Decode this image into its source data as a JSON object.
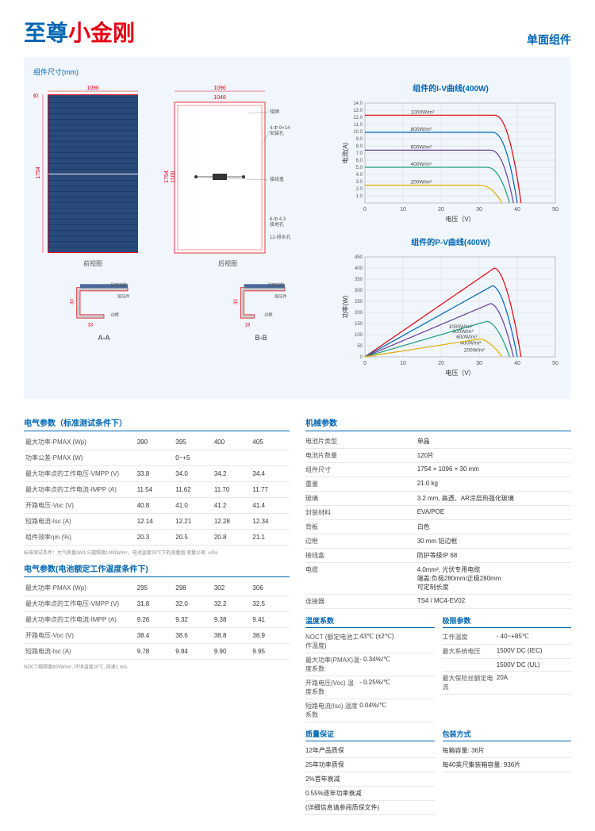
{
  "header": {
    "title_blue": "至尊",
    "title_red": "小金刚",
    "subtitle": "单面组件"
  },
  "dim_label": "组件尺寸(mm)",
  "dims": {
    "width": "1096",
    "inner_width": "1048",
    "height": "1754",
    "jbox_dist": "1100",
    "frame_h": "30",
    "prof_a_w": "33",
    "prof_b_w": "18",
    "front_caption": "前视图",
    "back_caption": "后视图",
    "prof_a": "A-A",
    "prof_b": "B-B",
    "label_mount": "4-Φ 9×14\n安装孔",
    "label_ground": "6-Φ 4.3\n接地孔",
    "label_drain": "12-排水孔",
    "label_nameplate": "铭牌",
    "label_jbox": "接线盒",
    "label_sealant": "硅密封胶",
    "label_laminate": "层压件",
    "label_frame": "边框"
  },
  "iv_chart": {
    "title": "组件的I-V曲线(400W)",
    "xlabel": "电压（V）",
    "ylabel": "电流(A)",
    "xlim": [
      0,
      50
    ],
    "xtick": [
      0,
      10,
      20,
      30,
      40,
      50
    ],
    "ylim": [
      0,
      14
    ],
    "ytick": [
      1,
      2,
      3,
      4,
      5,
      6,
      7,
      8,
      9,
      10,
      11,
      12,
      13,
      14
    ],
    "series": [
      {
        "label": "1000W/m²",
        "color": "#e60012",
        "y0": 12.3,
        "vmp": 34,
        "voc": 41
      },
      {
        "label": "800W/m²",
        "color": "#0066b3",
        "y0": 9.9,
        "vmp": 33.5,
        "voc": 40
      },
      {
        "label": "600W/m²",
        "color": "#6a3d9a",
        "y0": 7.4,
        "vmp": 33,
        "voc": 39
      },
      {
        "label": "400W/m²",
        "color": "#1b9e77",
        "y0": 5.0,
        "vmp": 32,
        "voc": 38
      },
      {
        "label": "200W/m²",
        "color": "#e6ab02",
        "y0": 2.5,
        "vmp": 30,
        "voc": 36
      }
    ],
    "grid_color": "#d8d8d8"
  },
  "pv_chart": {
    "title": "组件的P-V曲线(400W)",
    "xlabel": "电压（V）",
    "ylabel": "功率(W)",
    "xlim": [
      0,
      50
    ],
    "xtick": [
      0,
      10,
      20,
      30,
      40,
      50
    ],
    "ylim": [
      0,
      450
    ],
    "ytick": [
      0,
      50,
      100,
      150,
      200,
      250,
      300,
      350,
      400,
      450
    ],
    "series": [
      {
        "label": "1000W/m²",
        "color": "#e60012",
        "vmp": 34,
        "pmax": 400,
        "voc": 41
      },
      {
        "label": "800W/m²",
        "color": "#0066b3",
        "vmp": 33.5,
        "pmax": 320,
        "voc": 40
      },
      {
        "label": "600W/m²",
        "color": "#6a3d9a",
        "vmp": 33,
        "pmax": 240,
        "voc": 39
      },
      {
        "label": "400W/m²",
        "color": "#1b9e77",
        "vmp": 32,
        "pmax": 160,
        "voc": 38
      },
      {
        "label": "200W/m²",
        "color": "#e6ab02",
        "vmp": 30,
        "pmax": 80,
        "voc": 36
      }
    ],
    "grid_color": "#d8d8d8"
  },
  "elec_stc": {
    "title": "电气参数（标准测试条件下）",
    "rows": [
      {
        "k": "最大功率-PMAX (Wp)",
        "v": [
          "390",
          "395",
          "400",
          "405"
        ]
      },
      {
        "k": "功率公差-PMAX (W)",
        "v": [
          "",
          "0~+5",
          "",
          ""
        ]
      },
      {
        "k": "最大功率点的工作电压-VMPP (V)",
        "v": [
          "33.8",
          "34.0",
          "34.2",
          "34.4"
        ]
      },
      {
        "k": "最大功率点的工作电流-IMPP (A)",
        "v": [
          "11.54",
          "11.62",
          "11.70",
          "11.77"
        ]
      },
      {
        "k": "开路电压-Voc (V)",
        "v": [
          "40.8",
          "41.0",
          "41.2",
          "41.4"
        ]
      },
      {
        "k": "短路电流-Isc (A)",
        "v": [
          "12.14",
          "12.21",
          "12.28",
          "12.34"
        ]
      },
      {
        "k": "组件效率ηm (%)",
        "v": [
          "20.3",
          "20.5",
          "20.8",
          "21.1"
        ]
      }
    ],
    "note": "标准测试条件：大气质量AM1.5,辐照度1000W/m²，电池温度25℃下的测量值 测量公差: ±3%"
  },
  "elec_noct": {
    "title": "电气参数(电池额定工作温度条件下)",
    "rows": [
      {
        "k": "最大功率-PMAX (Wp)",
        "v": [
          "295",
          "298",
          "302",
          "306"
        ]
      },
      {
        "k": "最大功率点的工作电压-VMPP (V)",
        "v": [
          "31.8",
          "32.0",
          "32.2",
          "32.5"
        ]
      },
      {
        "k": "最大功率点的工作电流-IMPP (A)",
        "v": [
          "9.26",
          "9.32",
          "9.38",
          "9.41"
        ]
      },
      {
        "k": "开路电压-Voc (V)",
        "v": [
          "38.4",
          "38.6",
          "38.8",
          "38.9"
        ]
      },
      {
        "k": "短路电流-Isc (A)",
        "v": [
          "9.78",
          "9.84",
          "9.90",
          "9.95"
        ]
      }
    ],
    "note": "NOCT:辐照度800W/m², 环境温度20℃, 风速1 m/s"
  },
  "mech": {
    "title": "机械参数",
    "rows": [
      {
        "k": "电池片类型",
        "v": "单晶"
      },
      {
        "k": "电池片数量",
        "v": "120片"
      },
      {
        "k": "组件尺寸",
        "v": "1754 × 1096 × 30 mm"
      },
      {
        "k": "重量",
        "v": "21.0 kg"
      },
      {
        "k": "玻璃",
        "v": "3.2 mm, 高透、AR涂层热强化玻璃"
      },
      {
        "k": "封装材料",
        "v": "EVA/POE"
      },
      {
        "k": "背板",
        "v": "白色"
      },
      {
        "k": "边框",
        "v": "30 mm 铝边框"
      },
      {
        "k": "接线盒",
        "v": "防护等级IP 68"
      },
      {
        "k": "电缆",
        "v": "4.0mm², 光伏专用电缆\n端盖:负极280mm/正极280mm\n可定制长度"
      },
      {
        "k": "连接器",
        "v": "TS4 / MC4-EV02"
      }
    ]
  },
  "temp": {
    "title": "温度系数",
    "rows": [
      {
        "k": "NOCT (额定电池工作温度)",
        "v": "43℃ (±2℃)"
      },
      {
        "k": "最大功率(PMAX)温度系数",
        "v": "- 0.34%/℃"
      },
      {
        "k": "开路电压(Voc) 温度系数",
        "v": "- 0.25%/℃"
      },
      {
        "k": "短路电流(Isc) 温度系数",
        "v": "0.04%/℃"
      }
    ]
  },
  "limits": {
    "title": "极限参数",
    "rows": [
      {
        "k": "工作温度",
        "v": "- 40~+85℃"
      },
      {
        "k": "最大系统电压",
        "v": "1500V DC (IEC)"
      },
      {
        "k": "",
        "v": "1500V DC (UL)"
      },
      {
        "k": "最大保险丝额定电流",
        "v": "20A"
      }
    ]
  },
  "warranty": {
    "title": "质量保证",
    "rows": [
      "12年产品质保",
      "25年功率质保",
      "2%首年衰减",
      "0.55%逐年功率衰减",
      "(详细信息请参阅质保文件)"
    ]
  },
  "packing": {
    "title": "包装方式",
    "rows": [
      "每箱容量: 36片",
      "每40英尺集装箱容量: 936片"
    ]
  }
}
